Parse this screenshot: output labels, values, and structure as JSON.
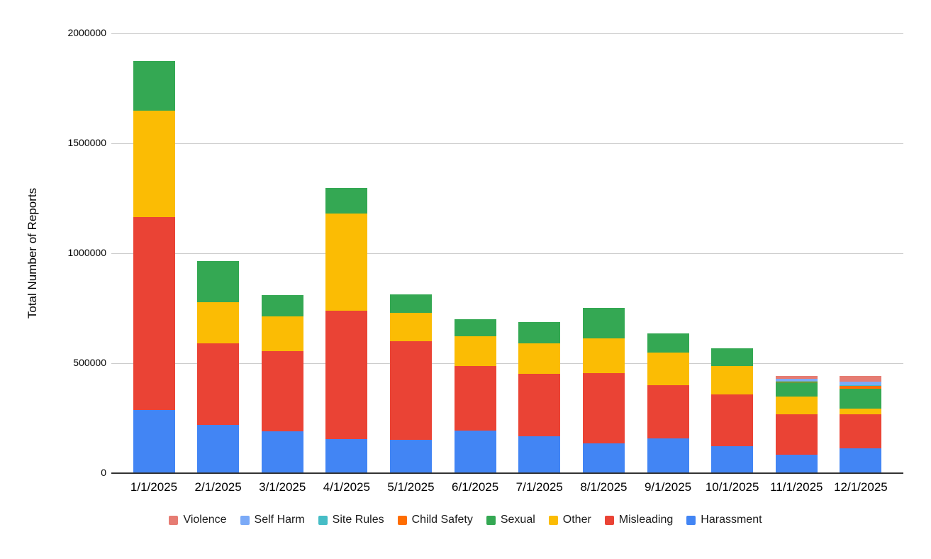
{
  "page": {
    "background_color": "#ffffff",
    "text_color": "#000000"
  },
  "axis_style": {
    "baseline_color": "#333333",
    "gridline_color": "#cccccc"
  },
  "chart_data": {
    "type": "bar",
    "stacked": true,
    "title": "",
    "xlabel": "",
    "ylabel": "Total Number of Reports",
    "ylim": [
      0,
      2000000
    ],
    "yticks": [
      0,
      500000,
      1000000,
      1500000,
      2000000
    ],
    "ytick_labels": [
      "0",
      "500000",
      "1000000",
      "1500000",
      "2000000"
    ],
    "grid": true,
    "legend_position": "bottom",
    "categories": [
      "1/1/2025",
      "2/1/2025",
      "3/1/2025",
      "4/1/2025",
      "5/1/2025",
      "6/1/2025",
      "7/1/2025",
      "8/1/2025",
      "9/1/2025",
      "10/1/2025",
      "11/1/2025",
      "12/1/2025"
    ],
    "series": [
      {
        "name": "Harassment",
        "color": "#4285F4",
        "values": [
          285000,
          215000,
          187000,
          152000,
          149000,
          190000,
          165000,
          131000,
          155000,
          119000,
          80000,
          111000
        ]
      },
      {
        "name": "Misleading",
        "color": "#EA4335",
        "values": [
          875000,
          373000,
          365000,
          585000,
          447000,
          295000,
          285000,
          321000,
          242000,
          237000,
          183000,
          152000
        ]
      },
      {
        "name": "Other",
        "color": "#FBBC04",
        "values": [
          485000,
          185000,
          159000,
          439000,
          129000,
          134000,
          138000,
          158000,
          148000,
          128000,
          81000,
          27000
        ]
      },
      {
        "name": "Sexual",
        "color": "#34A853",
        "values": [
          225000,
          187000,
          96000,
          118000,
          86000,
          78000,
          97000,
          140000,
          88000,
          82000,
          65000,
          91000
        ]
      },
      {
        "name": "Child Safety",
        "color": "#FF6D01",
        "values": [
          0,
          0,
          0,
          0,
          0,
          0,
          0,
          0,
          0,
          0,
          5000,
          13000
        ]
      },
      {
        "name": "Site Rules",
        "color": "#46BDC6",
        "values": [
          0,
          0,
          0,
          0,
          0,
          0,
          0,
          0,
          0,
          0,
          3000,
          3000
        ]
      },
      {
        "name": "Self Harm",
        "color": "#7BAAF7",
        "values": [
          0,
          0,
          0,
          0,
          0,
          0,
          0,
          0,
          0,
          0,
          10000,
          16000
        ]
      },
      {
        "name": "Violence",
        "color": "#E67C73",
        "values": [
          0,
          0,
          0,
          0,
          0,
          0,
          0,
          0,
          0,
          0,
          11000,
          26000
        ]
      }
    ],
    "legend_order": [
      "Violence",
      "Self Harm",
      "Site Rules",
      "Child Safety",
      "Sexual",
      "Other",
      "Misleading",
      "Harassment"
    ]
  }
}
